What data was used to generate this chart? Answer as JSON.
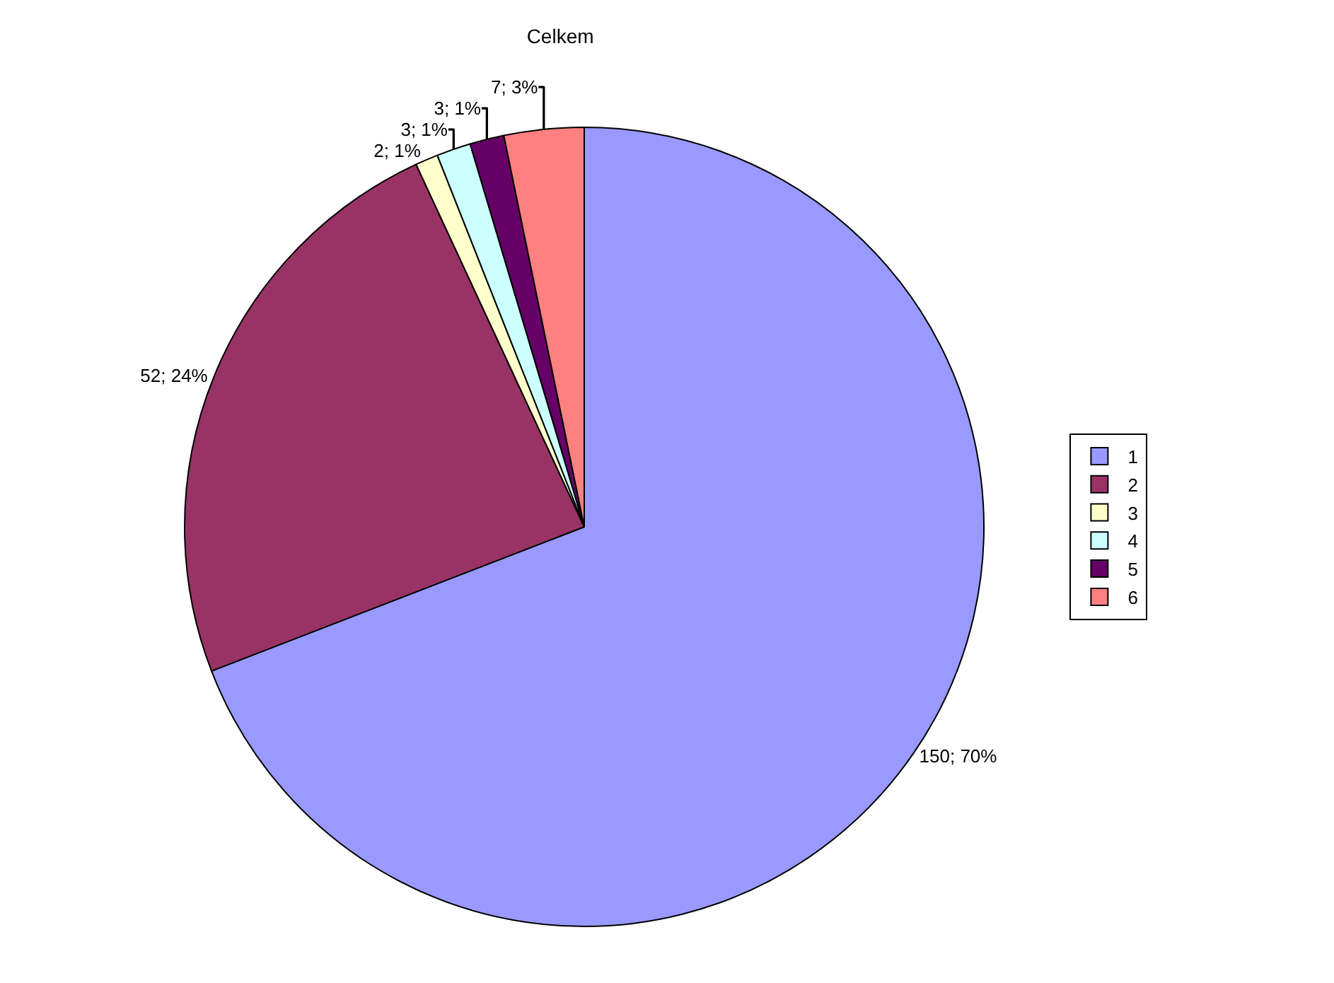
{
  "chart_data": {
    "type": "pie",
    "title": "Celkem",
    "categories": [
      "1",
      "2",
      "3",
      "4",
      "5",
      "6"
    ],
    "values": [
      150,
      52,
      2,
      3,
      3,
      7
    ],
    "colors": [
      "#9999ff",
      "#993366",
      "#ffffcc",
      "#ccffff",
      "#660066",
      "#ff8080"
    ],
    "value_labels": [
      "150; 70%",
      "52; 24%",
      "2; 1%",
      "3; 1%",
      "3; 1%",
      "7; 3%"
    ],
    "legend": "right"
  }
}
